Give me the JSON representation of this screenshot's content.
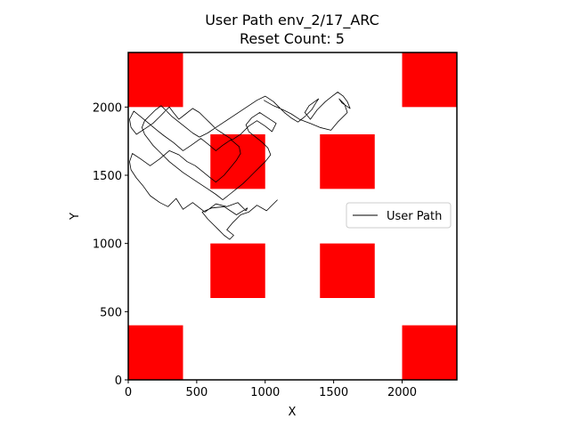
{
  "chart_data": {
    "type": "line",
    "title_line1": "User Path env_2/17_ARC",
    "title_line2": "Reset Count: 5",
    "xlabel": "X",
    "ylabel": "Y",
    "xlim": [
      0,
      2400
    ],
    "ylim": [
      0,
      2400
    ],
    "xticks": [
      0,
      500,
      1000,
      1500,
      2000
    ],
    "yticks": [
      0,
      500,
      1000,
      1500,
      2000
    ],
    "xtick_labels": [
      "0",
      "500",
      "1000",
      "1500",
      "2000"
    ],
    "ytick_labels": [
      "0",
      "500",
      "1000",
      "1500",
      "2000"
    ],
    "obstacle_color": "#ff0000",
    "path_color": "#000000",
    "obstacles": [
      {
        "x0": 0,
        "y0": 2000,
        "x1": 400,
        "y1": 2400
      },
      {
        "x0": 2000,
        "y0": 2000,
        "x1": 2400,
        "y1": 2400
      },
      {
        "x0": 600,
        "y0": 1400,
        "x1": 1000,
        "y1": 1800
      },
      {
        "x0": 1400,
        "y0": 1400,
        "x1": 1800,
        "y1": 1800
      },
      {
        "x0": 600,
        "y0": 600,
        "x1": 1000,
        "y1": 1000
      },
      {
        "x0": 1400,
        "y0": 600,
        "x1": 1800,
        "y1": 1000
      },
      {
        "x0": 0,
        "y0": 0,
        "x1": 400,
        "y1": 400
      },
      {
        "x0": 2000,
        "y0": 0,
        "x1": 2400,
        "y1": 400
      }
    ],
    "legend": {
      "label": "User Path",
      "placement": "center-right"
    },
    "series": [
      {
        "name": "User Path",
        "x": [
          1090,
          1010,
          940,
          880,
          820,
          760,
          720,
          770,
          740,
          700,
          660,
          580,
          540,
          610,
          700,
          790,
          870,
          860,
          800,
          720,
          640,
          560,
          470,
          400,
          350,
          290,
          230,
          160,
          110,
          60,
          20,
          10,
          30,
          90,
          160,
          230,
          300,
          370,
          430,
          490,
          540,
          600,
          640,
          700,
          750,
          790,
          820,
          810,
          750,
          690,
          640,
          580,
          530,
          460,
          400,
          330,
          260,
          210,
          150,
          90,
          40,
          10,
          20,
          60,
          120,
          180,
          230,
          270,
          300,
          330,
          370,
          420,
          470,
          520,
          560,
          600,
          640,
          700,
          760,
          820,
          880,
          940,
          1000,
          1050,
          1080,
          1020,
          960,
          900,
          860,
          880,
          930,
          980,
          1020,
          1040,
          1000,
          960,
          920,
          880,
          840,
          790,
          740,
          690,
          640,
          580,
          520,
          460,
          400,
          350,
          300,
          260,
          220,
          180,
          150,
          120,
          100,
          120,
          160,
          200,
          240,
          280,
          320,
          370,
          420,
          470,
          520,
          580,
          640,
          700,
          760,
          820,
          880,
          940,
          1000,
          1060,
          1100,
          1140,
          1190,
          1240,
          1290,
          1340,
          1370,
          1390,
          1320,
          1290,
          1330,
          1380,
          1440,
          1490,
          1530,
          1570,
          1600,
          1620,
          1560,
          1540,
          1580,
          1600,
          1530,
          1480,
          1400,
          1330,
          1250,
          1190,
          1130,
          1060,
          990
        ],
        "y": [
          1320,
          1240,
          1280,
          1230,
          1210,
          1150,
          1100,
          1060,
          1030,
          1060,
          1100,
          1180,
          1230,
          1260,
          1270,
          1210,
          1260,
          1240,
          1300,
          1270,
          1290,
          1230,
          1300,
          1250,
          1330,
          1270,
          1300,
          1350,
          1420,
          1480,
          1540,
          1600,
          1660,
          1620,
          1570,
          1620,
          1680,
          1650,
          1600,
          1570,
          1530,
          1480,
          1450,
          1500,
          1560,
          1610,
          1660,
          1710,
          1760,
          1720,
          1680,
          1730,
          1770,
          1720,
          1680,
          1740,
          1790,
          1830,
          1880,
          1930,
          1970,
          1910,
          1850,
          1800,
          1840,
          1880,
          1930,
          1970,
          2000,
          1960,
          1910,
          1950,
          1990,
          1960,
          1920,
          1880,
          1840,
          1800,
          1760,
          1800,
          1860,
          1900,
          1860,
          1820,
          1880,
          1920,
          1960,
          1920,
          1870,
          1820,
          1780,
          1740,
          1700,
          1650,
          1600,
          1560,
          1520,
          1480,
          1440,
          1400,
          1360,
          1320,
          1360,
          1400,
          1440,
          1480,
          1520,
          1560,
          1600,
          1640,
          1680,
          1720,
          1760,
          1800,
          1850,
          1900,
          1940,
          1980,
          2010,
          1970,
          1930,
          1890,
          1850,
          1810,
          1780,
          1810,
          1850,
          1890,
          1930,
          1970,
          2010,
          2050,
          2080,
          2040,
          2000,
          1960,
          1920,
          1890,
          1930,
          1980,
          2030,
          2060,
          2010,
          1960,
          1910,
          1980,
          2040,
          2080,
          2110,
          2080,
          2040,
          1990,
          2030,
          2060,
          2020,
          1960,
          1890,
          1830,
          1850,
          1880,
          1910,
          1950,
          1980,
          2010,
          2050
        ]
      }
    ]
  }
}
